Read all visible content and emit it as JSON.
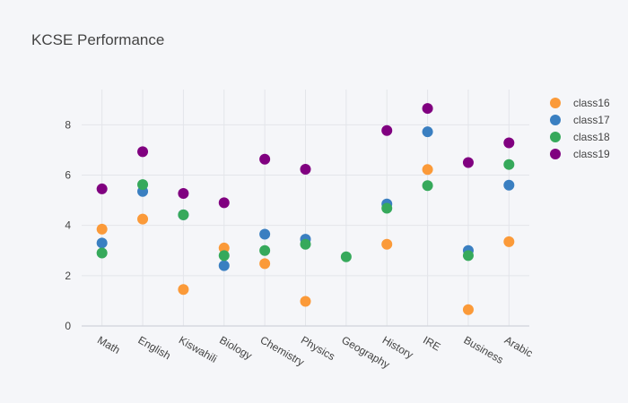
{
  "chart_data": {
    "type": "scatter",
    "title": "KCSE Performance",
    "xlabel": "",
    "ylabel": "",
    "categories": [
      "Math",
      "English",
      "Kiswahili",
      "Biology",
      "Chemistry",
      "Physics",
      "Geography",
      "History",
      "IRE",
      "Business",
      "Arabic"
    ],
    "yticks": [
      0,
      2,
      4,
      6,
      8
    ],
    "ylim": [
      0,
      9.4
    ],
    "grid": true,
    "legend_position": "top-right",
    "series": [
      {
        "name": "class16",
        "color": "#fb9a39",
        "values": [
          3.85,
          4.25,
          1.45,
          3.1,
          2.48,
          0.98,
          null,
          3.25,
          6.22,
          0.65,
          3.35
        ]
      },
      {
        "name": "class17",
        "color": "#3a7fc1",
        "values": [
          3.3,
          5.35,
          4.42,
          2.4,
          3.65,
          3.45,
          null,
          4.85,
          7.72,
          3.0,
          5.6
        ]
      },
      {
        "name": "class18",
        "color": "#36a95b",
        "values": [
          2.9,
          5.62,
          4.42,
          2.8,
          3.0,
          3.25,
          2.75,
          4.68,
          5.58,
          2.8,
          6.42
        ]
      },
      {
        "name": "class19",
        "color": "#800080",
        "values": [
          5.45,
          6.93,
          5.27,
          4.9,
          6.63,
          6.23,
          null,
          7.77,
          8.65,
          6.5,
          7.28
        ]
      }
    ]
  }
}
